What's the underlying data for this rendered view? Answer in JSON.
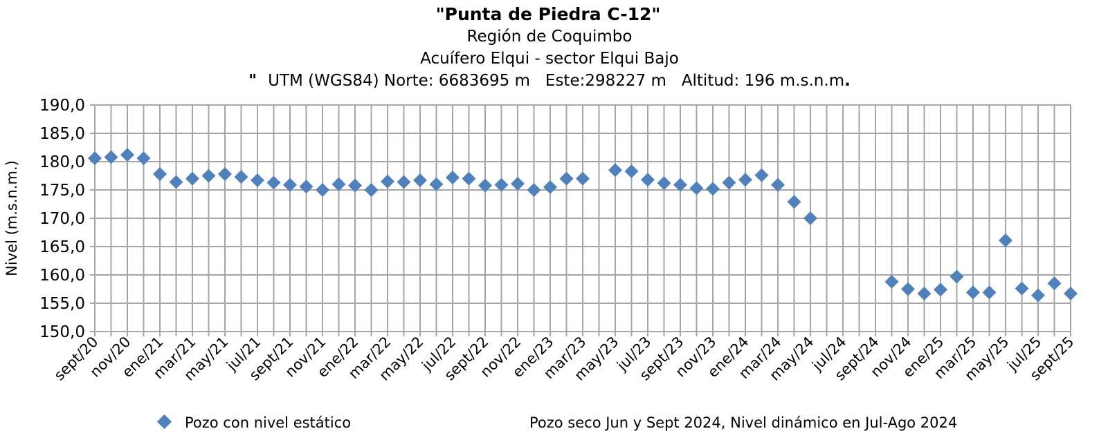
{
  "chart_data": {
    "type": "scatter",
    "title": "\"Punta de Piedra C-12\"",
    "subtitle_lines": [
      "Región de Coquimbo",
      "Acuífero Elqui - sector Elqui Bajo"
    ],
    "location": {
      "quote": "\"",
      "text": "UTM (WGS84) Norte: 6683695 m   Este:298227 m   Altitud: 196 m.s.n.m",
      "end": "."
    },
    "ylabel": "Nivel (m.s.n.m.)",
    "xlabel": "",
    "ylim": [
      150,
      190
    ],
    "ytick_step": 5,
    "yticks": [
      "150,0",
      "155,0",
      "160,0",
      "165,0",
      "170,0",
      "175,0",
      "180,0",
      "185,0",
      "190,0"
    ],
    "xticks": [
      "sept/20",
      "nov/20",
      "ene/21",
      "mar/21",
      "may/21",
      "jul/21",
      "sept/21",
      "nov/21",
      "ene/22",
      "mar/22",
      "may/22",
      "jul/22",
      "sept/22",
      "nov/22",
      "ene/23",
      "mar/23",
      "may/23",
      "jul/23",
      "sept/23",
      "nov/23",
      "ene/24",
      "mar/24",
      "may/24",
      "jul/24",
      "sept/24",
      "nov/24",
      "ene/25",
      "mar/25",
      "may/25",
      "jul/25",
      "sept/25"
    ],
    "grid": true,
    "series": [
      {
        "name": "Pozo con nivel estático",
        "color": "#4f81bd",
        "marker": "diamond",
        "points": [
          {
            "x": "sept/20",
            "y": 180.6
          },
          {
            "x": "oct/20",
            "y": 180.8
          },
          {
            "x": "nov/20",
            "y": 181.2
          },
          {
            "x": "dic/20",
            "y": 180.6
          },
          {
            "x": "ene/21",
            "y": 177.8
          },
          {
            "x": "feb/21",
            "y": 176.4
          },
          {
            "x": "mar/21",
            "y": 177.0
          },
          {
            "x": "abr/21",
            "y": 177.5
          },
          {
            "x": "may/21",
            "y": 177.8
          },
          {
            "x": "jun/21",
            "y": 177.3
          },
          {
            "x": "jul/21",
            "y": 176.7
          },
          {
            "x": "ago/21",
            "y": 176.3
          },
          {
            "x": "sept/21",
            "y": 175.9
          },
          {
            "x": "oct/21",
            "y": 175.6
          },
          {
            "x": "nov/21",
            "y": 175.0
          },
          {
            "x": "dic/21",
            "y": 176.0
          },
          {
            "x": "ene/22",
            "y": 175.8
          },
          {
            "x": "feb/22",
            "y": 175.0
          },
          {
            "x": "mar/22",
            "y": 176.5
          },
          {
            "x": "abr/22",
            "y": 176.4
          },
          {
            "x": "may/22",
            "y": 176.7
          },
          {
            "x": "jun/22",
            "y": 176.0
          },
          {
            "x": "jul/22",
            "y": 177.2
          },
          {
            "x": "ago/22",
            "y": 177.0
          },
          {
            "x": "sept/22",
            "y": 175.8
          },
          {
            "x": "oct/22",
            "y": 175.9
          },
          {
            "x": "nov/22",
            "y": 176.1
          },
          {
            "x": "dic/22",
            "y": 175.0
          },
          {
            "x": "ene/23",
            "y": 175.5
          },
          {
            "x": "feb/23",
            "y": 177.0
          },
          {
            "x": "mar/23",
            "y": 177.0
          },
          {
            "x": "may/23",
            "y": 178.5
          },
          {
            "x": "jun/23",
            "y": 178.3
          },
          {
            "x": "jul/23",
            "y": 176.8
          },
          {
            "x": "ago/23",
            "y": 176.2
          },
          {
            "x": "sept/23",
            "y": 175.9
          },
          {
            "x": "oct/23",
            "y": 175.3
          },
          {
            "x": "nov/23",
            "y": 175.2
          },
          {
            "x": "dic/23",
            "y": 176.3
          },
          {
            "x": "ene/24",
            "y": 176.8
          },
          {
            "x": "feb/24",
            "y": 177.6
          },
          {
            "x": "mar/24",
            "y": 175.9
          },
          {
            "x": "abr/24",
            "y": 172.9
          },
          {
            "x": "may/24",
            "y": 170.0
          },
          {
            "x": "oct/24",
            "y": 158.8
          },
          {
            "x": "nov/24",
            "y": 157.5
          },
          {
            "x": "dic/24",
            "y": 156.7
          },
          {
            "x": "ene/25",
            "y": 157.4
          },
          {
            "x": "feb/25",
            "y": 159.7
          },
          {
            "x": "mar/25",
            "y": 156.9
          },
          {
            "x": "abr/25",
            "y": 156.9
          },
          {
            "x": "may/25",
            "y": 166.1
          },
          {
            "x": "jun/25",
            "y": 157.6
          },
          {
            "x": "jul/25",
            "y": 156.4
          },
          {
            "x": "ago/25",
            "y": 158.5
          },
          {
            "x": "sept/25",
            "y": 156.7
          }
        ]
      }
    ],
    "legend_placement": "bottom-left",
    "note": "Pozo seco Jun y Sept 2024, Nivel dinámico en Jul-Ago 2024"
  }
}
